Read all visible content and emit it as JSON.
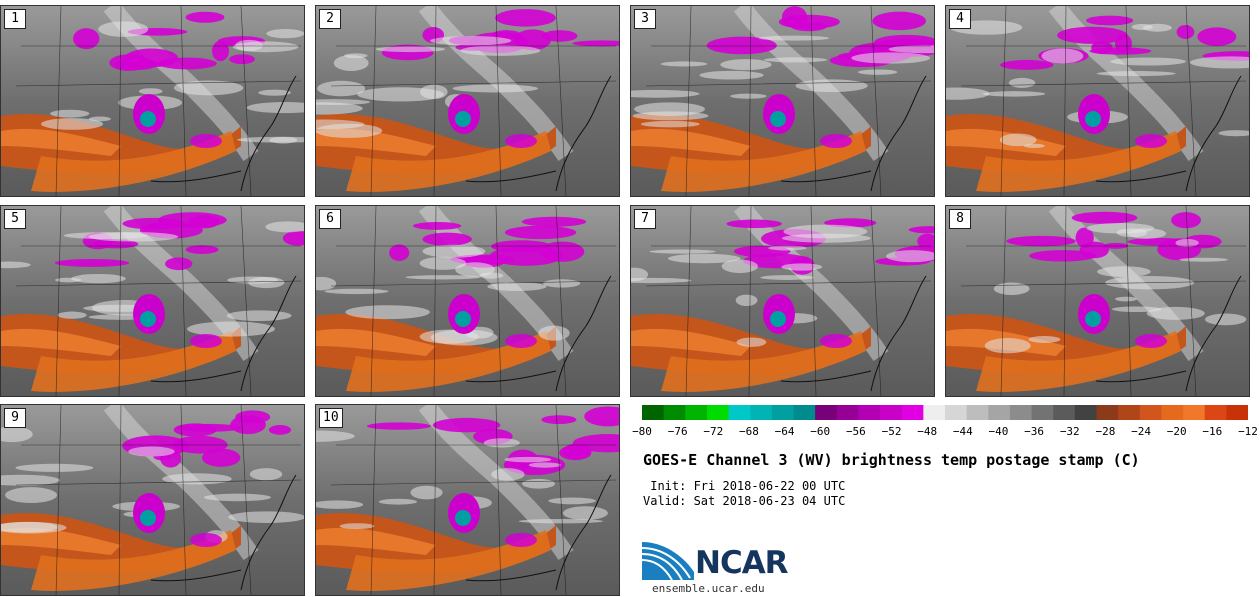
{
  "panels": [
    {
      "number": "1"
    },
    {
      "number": "2"
    },
    {
      "number": "3"
    },
    {
      "number": "4"
    },
    {
      "number": "5"
    },
    {
      "number": "6"
    },
    {
      "number": "7"
    },
    {
      "number": "8"
    },
    {
      "number": "9"
    },
    {
      "number": "10"
    }
  ],
  "colorbar": {
    "colors": [
      "#006400",
      "#008c00",
      "#00b400",
      "#00dc00",
      "#00c8c8",
      "#00b4b4",
      "#00a0a0",
      "#008c8c",
      "#780078",
      "#960096",
      "#b400b4",
      "#c800c8",
      "#e100e1",
      "#eeeeee",
      "#d6d6d6",
      "#bdbdbd",
      "#a5a5a5",
      "#8c8c8c",
      "#737373",
      "#5b5b5b",
      "#424242",
      "#8b3a1a",
      "#b0451a",
      "#d2551e",
      "#e66a1e",
      "#f07828",
      "#dc4614",
      "#c83208"
    ],
    "ticks": [
      "−80",
      "−76",
      "−72",
      "−68",
      "−64",
      "−60",
      "−56",
      "−52",
      "−48",
      "−44",
      "−40",
      "−36",
      "−32",
      "−28",
      "−24",
      "−20",
      "−16",
      "−12"
    ]
  },
  "title": "GOES-E Channel 3 (WV) brightness temp postage stamp (C)",
  "init": " Init: Fri 2018-06-22 00 UTC",
  "valid": "Valid: Sat 2018-06-23 04 UTC",
  "logo": {
    "text": "NCAR",
    "url": "ensemble.ucar.edu",
    "color": "#16355e",
    "accent": "#1a7fc1"
  }
}
